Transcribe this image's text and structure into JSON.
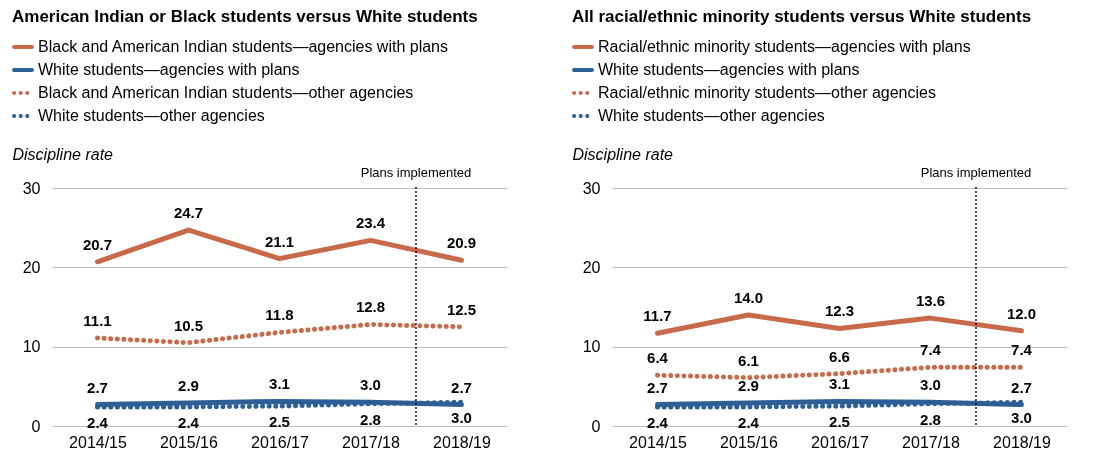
{
  "chart_data": [
    {
      "type": "line",
      "title": "American Indian or Black students versus White students",
      "ylabel": "Discipline rate",
      "categories": [
        "2014/15",
        "2015/16",
        "2016/17",
        "2017/18",
        "2018/19"
      ],
      "ylim": [
        0,
        30
      ],
      "yticks": [
        0,
        10,
        20,
        30
      ],
      "grid": "y",
      "legend": "top left",
      "marker": "none",
      "series": [
        {
          "name": "Black and American Indian students—agencies with plans",
          "color": "#c8694a",
          "line_style": "solid",
          "values": [
            20.7,
            24.7,
            21.1,
            23.4,
            20.9
          ],
          "value_labels": [
            "20.7",
            "24.7",
            "21.1",
            "23.4",
            "20.9"
          ]
        },
        {
          "name": "White students—agencies with plans",
          "color": "#2d5e96",
          "line_style": "solid",
          "values": [
            2.7,
            2.9,
            3.1,
            3.0,
            2.7
          ],
          "value_labels": [
            "2.7",
            "2.9",
            "3.1",
            "3.0",
            "2.7"
          ]
        },
        {
          "name": "Black and American Indian students—other agencies",
          "color": "#c8694a",
          "line_style": "dotted",
          "values": [
            11.1,
            10.5,
            11.8,
            12.8,
            12.5
          ],
          "value_labels": [
            "11.1",
            "10.5",
            "11.8",
            "12.8",
            "12.5"
          ]
        },
        {
          "name": "White students—other agencies",
          "color": "#2d5e96",
          "line_style": "dotted",
          "values": [
            2.4,
            2.4,
            2.5,
            2.8,
            3.0
          ],
          "value_labels": [
            "2.4",
            "2.4",
            "2.5",
            "2.8",
            "3.0"
          ]
        }
      ],
      "annotations": [
        "Plans implemented"
      ]
    },
    {
      "type": "line",
      "title": "All racial/ethnic minority students versus White students",
      "ylabel": "Discipline rate",
      "categories": [
        "2014/15",
        "2015/16",
        "2016/17",
        "2017/18",
        "2018/19"
      ],
      "ylim": [
        0,
        30
      ],
      "yticks": [
        0,
        10,
        20,
        30
      ],
      "grid": "y",
      "legend": "top left",
      "marker": "none",
      "series": [
        {
          "name": "Racial/ethnic minority students—agencies with plans",
          "color": "#c8694a",
          "line_style": "solid",
          "values": [
            11.7,
            14.0,
            12.3,
            13.6,
            12.0
          ],
          "value_labels": [
            "11.7",
            "14.0",
            "12.3",
            "13.6",
            "12.0"
          ]
        },
        {
          "name": "White students—agencies with plans",
          "color": "#2d5e96",
          "line_style": "solid",
          "values": [
            2.7,
            2.9,
            3.1,
            3.0,
            2.7
          ],
          "value_labels": [
            "2.7",
            "2.9",
            "3.1",
            "3.0",
            "2.7"
          ]
        },
        {
          "name": "Racial/ethnic minority students—other agencies",
          "color": "#c8694a",
          "line_style": "dotted",
          "values": [
            6.4,
            6.1,
            6.6,
            7.4,
            7.4
          ],
          "value_labels": [
            "6.4",
            "6.1",
            "6.6",
            "7.4",
            "7.4"
          ]
        },
        {
          "name": "White students—other agencies",
          "color": "#2d5e96",
          "line_style": "dotted",
          "values": [
            2.4,
            2.4,
            2.5,
            2.8,
            3.0
          ],
          "value_labels": [
            "2.4",
            "2.4",
            "2.5",
            "2.8",
            "3.0"
          ]
        }
      ],
      "annotations": [
        "Plans implemented"
      ]
    }
  ]
}
